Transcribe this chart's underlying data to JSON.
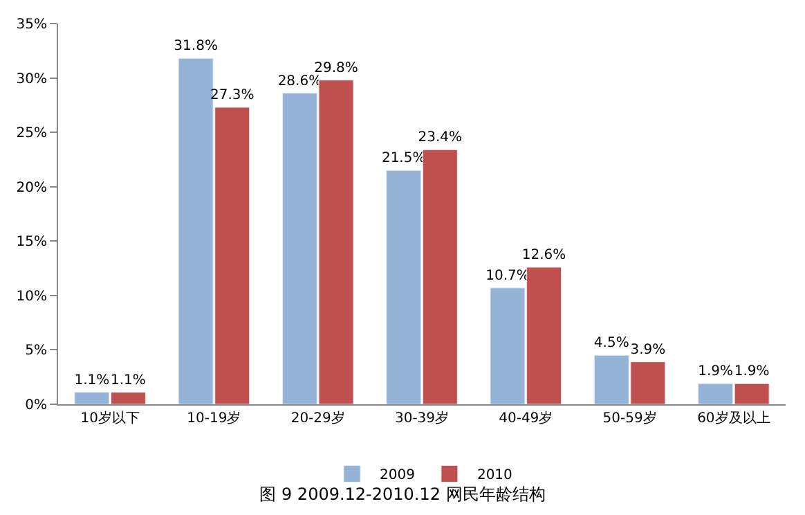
{
  "chart_data": {
    "type": "bar",
    "title": "图 9 2009.12-2010.12 网民年龄结构",
    "categories": [
      "10岁以下",
      "10-19岁",
      "20-29岁",
      "30-39岁",
      "40-49岁",
      "50-59岁",
      "60岁及以上"
    ],
    "series": [
      {
        "name": "2009",
        "color": "#95b3d7",
        "values": [
          1.1,
          31.8,
          28.6,
          21.5,
          10.7,
          4.5,
          1.9
        ],
        "value_labels": [
          "1.1%",
          "31.8%",
          "28.6%",
          "21.5%",
          "10.7%",
          "4.5%",
          "1.9%"
        ]
      },
      {
        "name": "2010",
        "color": "#c0504d",
        "values": [
          1.1,
          27.3,
          29.8,
          23.4,
          12.6,
          3.9,
          1.9
        ],
        "value_labels": [
          "1.1%",
          "27.3%",
          "29.8%",
          "23.4%",
          "12.6%",
          "3.9%",
          "1.9%"
        ]
      }
    ],
    "ylim": [
      0,
      35
    ],
    "yticks": [
      {
        "value": 0,
        "label": "0%"
      },
      {
        "value": 5,
        "label": "5%"
      },
      {
        "value": 10,
        "label": "10%"
      },
      {
        "value": 15,
        "label": "15%"
      },
      {
        "value": 20,
        "label": "20%"
      },
      {
        "value": 25,
        "label": "25%"
      },
      {
        "value": 30,
        "label": "30%"
      },
      {
        "value": 35,
        "label": "35%"
      }
    ],
    "legend": "bottom"
  }
}
